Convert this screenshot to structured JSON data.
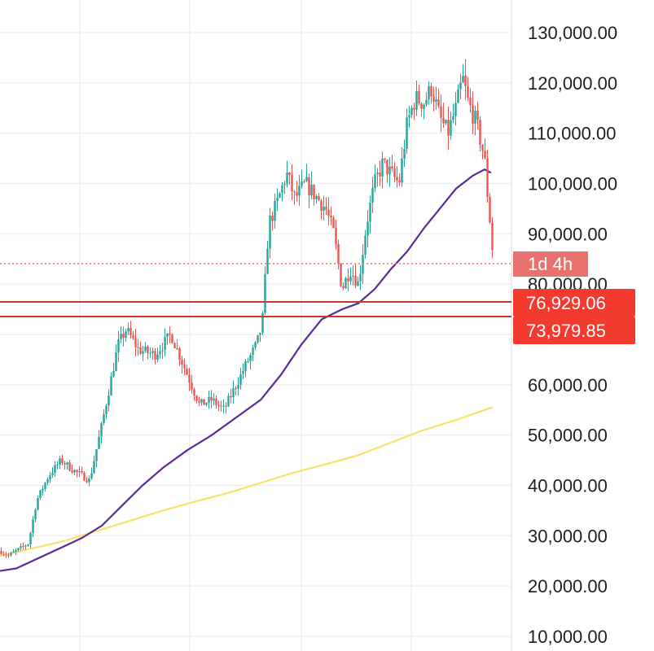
{
  "chart_data": {
    "type": "candlestick",
    "title": "",
    "xlabel": "",
    "ylabel": "",
    "ylim": [
      10000,
      135000
    ],
    "y_ticks": [
      "130,000.00",
      "120,000.00",
      "110,000.00",
      "100,000.00",
      "90,000.00",
      "80,000.00",
      "60,000.00",
      "50,000.00",
      "40,000.00",
      "30,000.00",
      "20,000.00",
      "10,000.00"
    ],
    "y_tick_values": [
      130000,
      120000,
      110000,
      100000,
      90000,
      80000,
      60000,
      50000,
      40000,
      30000,
      20000,
      10000
    ],
    "grid": true,
    "colors": {
      "up": "#26a69a",
      "down": "#ef5350",
      "ma_short": "#5b2a9a",
      "ma_long": "#f7e26b",
      "level_line": "#c0392b",
      "tag": "#f23a2e",
      "countdown_tag": "#e8726d"
    },
    "horizontal_levels": [
      {
        "value": 76929.06,
        "label": "76,929.06"
      },
      {
        "value": 73979.85,
        "label": "73,979.85"
      }
    ],
    "current_price": 84000,
    "countdown_label": "1d 4h",
    "ohlc_keypoints": [
      [
        0,
        27000
      ],
      [
        10,
        26000
      ],
      [
        20,
        27000
      ],
      [
        35,
        28500
      ],
      [
        45,
        37000
      ],
      [
        60,
        42000
      ],
      [
        75,
        45000
      ],
      [
        90,
        43000
      ],
      [
        110,
        41000
      ],
      [
        125,
        52000
      ],
      [
        135,
        60000
      ],
      [
        145,
        68000
      ],
      [
        155,
        71000
      ],
      [
        170,
        67000
      ],
      [
        190,
        66000
      ],
      [
        210,
        70000
      ],
      [
        230,
        62000
      ],
      [
        245,
        56000
      ],
      [
        260,
        57000
      ],
      [
        275,
        55000
      ],
      [
        290,
        60000
      ],
      [
        305,
        65000
      ],
      [
        315,
        68000
      ],
      [
        322,
        72000
      ],
      [
        330,
        92000
      ],
      [
        340,
        96000
      ],
      [
        352,
        102000
      ],
      [
        362,
        97000
      ],
      [
        375,
        100000
      ],
      [
        390,
        97000
      ],
      [
        400,
        95000
      ],
      [
        410,
        90000
      ],
      [
        420,
        79000
      ],
      [
        430,
        83000
      ],
      [
        440,
        80000
      ],
      [
        450,
        92000
      ],
      [
        460,
        100000
      ],
      [
        470,
        104000
      ],
      [
        480,
        102000
      ],
      [
        490,
        100000
      ],
      [
        500,
        112000
      ],
      [
        510,
        117000
      ],
      [
        520,
        116000
      ],
      [
        530,
        119000
      ],
      [
        540,
        113000
      ],
      [
        550,
        110000
      ],
      [
        560,
        115000
      ],
      [
        568,
        121000
      ],
      [
        575,
        116000
      ],
      [
        585,
        112000
      ],
      [
        595,
        105000
      ],
      [
        600,
        95000
      ],
      [
        606,
        84000
      ]
    ],
    "ma_short_points": [
      [
        0,
        23000
      ],
      [
        20,
        23500
      ],
      [
        40,
        25000
      ],
      [
        60,
        26500
      ],
      [
        80,
        28000
      ],
      [
        100,
        29500
      ],
      [
        125,
        32000
      ],
      [
        150,
        36000
      ],
      [
        175,
        40000
      ],
      [
        200,
        43500
      ],
      [
        230,
        47000
      ],
      [
        260,
        50000
      ],
      [
        290,
        53500
      ],
      [
        320,
        57000
      ],
      [
        345,
        62000
      ],
      [
        370,
        68000
      ],
      [
        395,
        73000
      ],
      [
        420,
        75000
      ],
      [
        440,
        76200
      ],
      [
        460,
        79000
      ],
      [
        480,
        83000
      ],
      [
        500,
        86500
      ],
      [
        520,
        91000
      ],
      [
        540,
        95000
      ],
      [
        560,
        99000
      ],
      [
        580,
        101500
      ],
      [
        595,
        102800
      ],
      [
        602,
        102200
      ]
    ],
    "ma_long_points": [
      [
        0,
        26000
      ],
      [
        40,
        27500
      ],
      [
        80,
        29000
      ],
      [
        120,
        31000
      ],
      [
        160,
        33000
      ],
      [
        200,
        35000
      ],
      [
        240,
        36800
      ],
      [
        280,
        38500
      ],
      [
        320,
        40500
      ],
      [
        360,
        42500
      ],
      [
        400,
        44200
      ],
      [
        440,
        46000
      ],
      [
        480,
        48500
      ],
      [
        520,
        51000
      ],
      [
        560,
        53000
      ],
      [
        604,
        55500
      ]
    ]
  }
}
